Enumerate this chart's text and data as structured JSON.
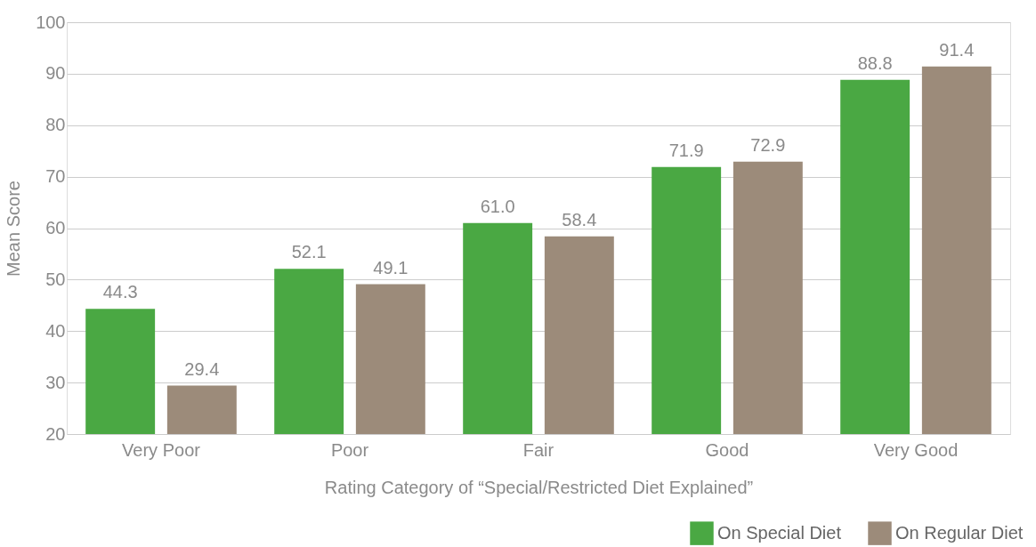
{
  "chart_data": {
    "type": "bar",
    "xlabel": "Rating Category of “Special/Restricted Diet Explained”",
    "ylabel": "Mean Score",
    "categories": [
      "Very Poor",
      "Poor",
      "Fair",
      "Good",
      "Very Good"
    ],
    "series": [
      {
        "name": "On Special Diet",
        "color": "#4aa843",
        "values": [
          44.3,
          52.1,
          61.0,
          71.9,
          88.8
        ]
      },
      {
        "name": "On Regular Diet",
        "color": "#9c8b7a",
        "values": [
          29.4,
          49.1,
          58.4,
          72.9,
          91.4
        ]
      }
    ],
    "value_labels": [
      [
        "44.3",
        "52.1",
        "61.0",
        "71.9",
        "88.8"
      ],
      [
        "29.4",
        "49.1",
        "58.4",
        "72.9",
        "91.4"
      ]
    ],
    "ylim": [
      20,
      100
    ],
    "yticks": [
      20,
      30,
      40,
      50,
      60,
      70,
      80,
      90,
      100
    ],
    "grid": "y",
    "legend": "bottom right"
  }
}
